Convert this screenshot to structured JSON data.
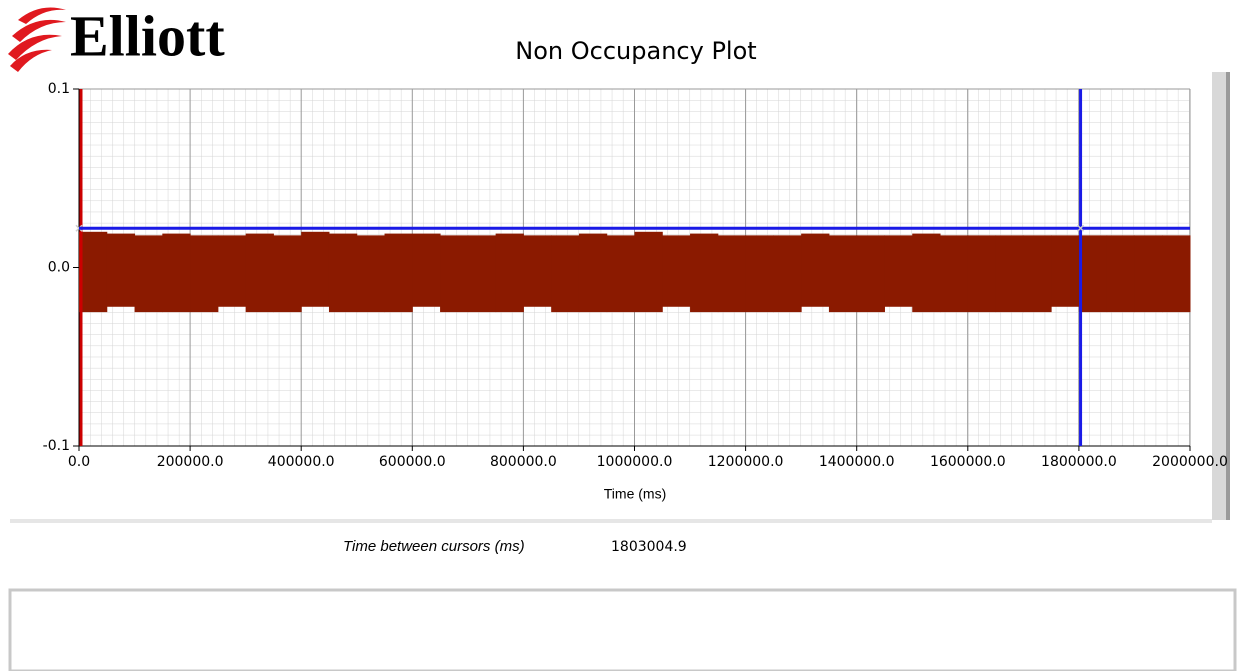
{
  "logo": "Elliott",
  "chart_data": {
    "type": "range",
    "title": "Non Occupancy Plot",
    "x_label": "Time (ms)",
    "bins": [
      0,
      50000,
      100000,
      150000,
      200000,
      250000,
      300000,
      350000,
      400000,
      450000,
      500000,
      550000,
      600000,
      650000,
      700000,
      750000,
      800000,
      850000,
      900000,
      950000,
      1000000,
      1050000,
      1100000,
      1150000,
      1200000,
      1250000,
      1300000,
      1350000,
      1400000,
      1450000,
      1500000,
      1550000,
      1600000,
      1650000,
      1700000,
      1750000,
      1800000,
      1850000,
      1900000,
      1950000,
      2000000
    ],
    "high": [
      0.02,
      0.019,
      0.018,
      0.019,
      0.018,
      0.018,
      0.019,
      0.018,
      0.02,
      0.019,
      0.018,
      0.019,
      0.019,
      0.018,
      0.018,
      0.019,
      0.018,
      0.018,
      0.019,
      0.018,
      0.02,
      0.018,
      0.019,
      0.018,
      0.018,
      0.018,
      0.019,
      0.018,
      0.018,
      0.018,
      0.019,
      0.018,
      0.018,
      0.018,
      0.018,
      0.018,
      0.018,
      0.018,
      0.018,
      0.018
    ],
    "low": [
      -0.025,
      -0.022,
      -0.025,
      -0.025,
      -0.025,
      -0.022,
      -0.025,
      -0.025,
      -0.022,
      -0.025,
      -0.025,
      -0.025,
      -0.022,
      -0.025,
      -0.025,
      -0.025,
      -0.022,
      -0.025,
      -0.025,
      -0.025,
      -0.025,
      -0.022,
      -0.025,
      -0.025,
      -0.025,
      -0.025,
      -0.022,
      -0.025,
      -0.025,
      -0.022,
      -0.025,
      -0.025,
      -0.025,
      -0.025,
      -0.025,
      -0.022,
      -0.025,
      -0.025,
      -0.025,
      -0.025
    ],
    "color": "#8b1a00",
    "xlim": [
      0,
      2000000
    ],
    "ylim": [
      -0.1,
      0.1
    ],
    "xticks": [
      {
        "value": 0,
        "label": "0.0"
      },
      {
        "value": 200000,
        "label": "200000.0"
      },
      {
        "value": 400000,
        "label": "400000.0"
      },
      {
        "value": 600000,
        "label": "600000.0"
      },
      {
        "value": 800000,
        "label": "800000.0"
      },
      {
        "value": 1000000,
        "label": "1000000.0"
      },
      {
        "value": 1200000,
        "label": "1200000.0"
      },
      {
        "value": 1400000,
        "label": "1400000.0"
      },
      {
        "value": 1600000,
        "label": "1600000.0"
      },
      {
        "value": 1800000,
        "label": "1800000.0"
      },
      {
        "value": 2000000,
        "label": "2000000.0"
      }
    ],
    "yticks": [
      {
        "value": -0.1,
        "label": "-0.1"
      },
      {
        "value": 0,
        "label": "0.0"
      },
      {
        "value": 0.1,
        "label": "0.1"
      }
    ],
    "grid": true,
    "cursors": [
      {
        "x": 0,
        "y": 0.022,
        "color": "#cc0000"
      },
      {
        "x": 1803004.9,
        "y": 0.022,
        "color": "#1a1ae6"
      }
    ]
  },
  "cursor_readout": {
    "label": "Time between cursors (ms)",
    "value": "1803004.9"
  }
}
